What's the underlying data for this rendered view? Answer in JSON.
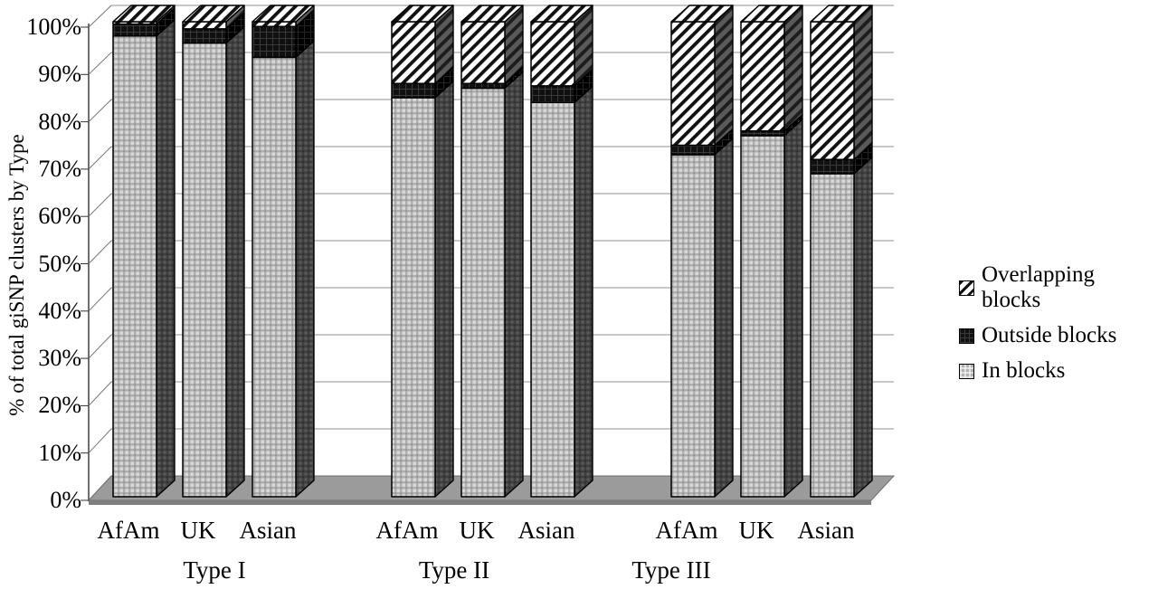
{
  "colors": {
    "background": "#ffffff",
    "grid": "#a8a8a8",
    "floor": "#9b9b9b",
    "floor_edge": "#7f7f7f",
    "axis": "#333333",
    "bar_outline": "#000000",
    "in_fill": "#b5b5b5",
    "out_fill": "#111111",
    "over_fill": "#ffffff"
  },
  "legend": {
    "items": [
      {
        "label": "Overlapping blocks",
        "key": "over",
        "swatch": "diagonal-hatch"
      },
      {
        "label": "Outside blocks",
        "key": "out",
        "swatch": "black-grid"
      },
      {
        "label": "In blocks",
        "key": "in",
        "swatch": "gray-dots"
      }
    ]
  },
  "chart_data": {
    "type": "bar",
    "stacked": true,
    "style": "3d",
    "unit": "%",
    "title": "",
    "ylabel": "% of total giSNP clusters by Type",
    "xlabel": "",
    "ylim": [
      0,
      100
    ],
    "ytick_step": 10,
    "yticks": [
      "0%",
      "10%",
      "20%",
      "30%",
      "40%",
      "50%",
      "60%",
      "70%",
      "80%",
      "90%",
      "100%"
    ],
    "grid": true,
    "legend_position": "right",
    "groups": [
      "Type I",
      "Type II",
      "Type III"
    ],
    "categories": [
      "AfAm",
      "UK",
      "Asian"
    ],
    "series": [
      {
        "name": "In blocks",
        "pattern": "in",
        "values": [
          [
            97,
            95.5,
            92.5
          ],
          [
            84,
            86,
            83
          ],
          [
            72,
            76,
            68
          ]
        ]
      },
      {
        "name": "Outside blocks",
        "pattern": "out",
        "values": [
          [
            2.5,
            3,
            6.5
          ],
          [
            3,
            1,
            3.5
          ],
          [
            2,
            1,
            3
          ]
        ]
      },
      {
        "name": "Overlapping blocks",
        "pattern": "over",
        "values": [
          [
            0.5,
            1.5,
            1
          ],
          [
            13,
            13,
            13.5
          ],
          [
            26,
            23,
            29
          ]
        ]
      }
    ]
  }
}
